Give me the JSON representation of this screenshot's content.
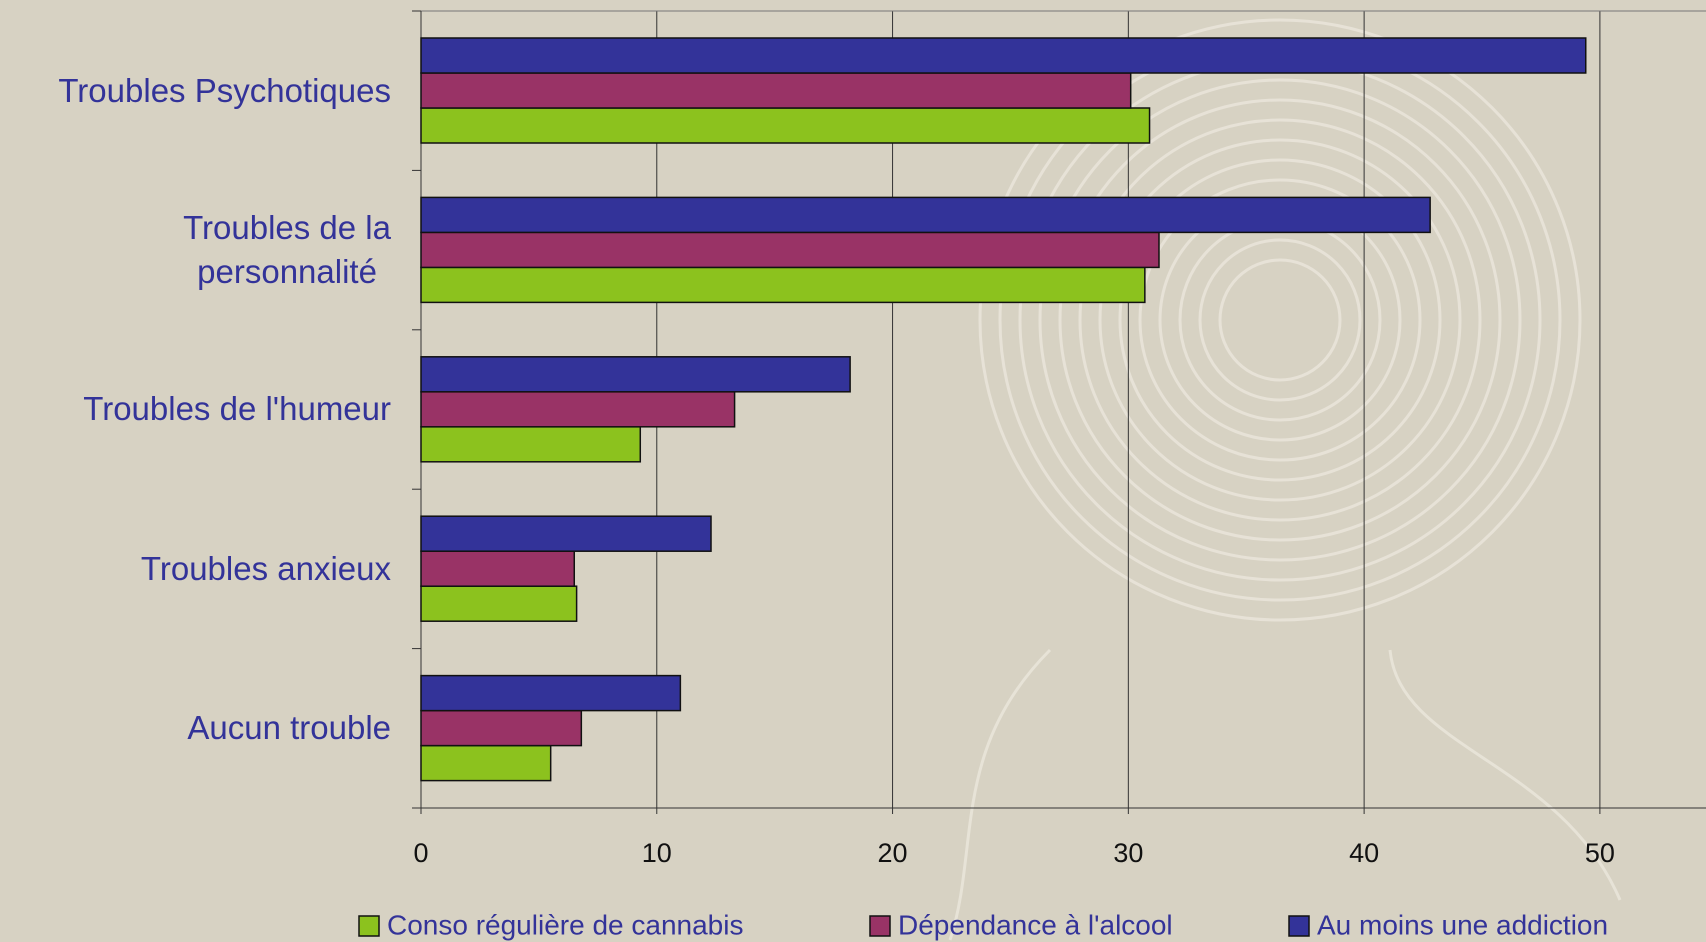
{
  "chart_data": {
    "type": "bar",
    "orientation": "horizontal",
    "categories": [
      "Troubles Psychotiques",
      "Troubles de la\npersonnalité",
      "Troubles de l'humeur",
      "Troubles anxieux",
      "Aucun trouble"
    ],
    "series": [
      {
        "name": "Conso régulière de cannabis",
        "color": "#8cc21e",
        "values": [
          30.9,
          30.7,
          9.3,
          6.6,
          5.5
        ]
      },
      {
        "name": "Dépendance à l'alcool",
        "color": "#993366",
        "values": [
          30.1,
          31.3,
          13.3,
          6.5,
          6.8
        ]
      },
      {
        "name": "Au moins une addiction",
        "color": "#333399",
        "values": [
          49.4,
          42.8,
          18.2,
          12.3,
          11.0
        ]
      }
    ],
    "xlim": [
      0,
      54.5
    ],
    "xticks": [
      0,
      10,
      20,
      30,
      40,
      50
    ],
    "grid": true,
    "legend": "bottom"
  }
}
